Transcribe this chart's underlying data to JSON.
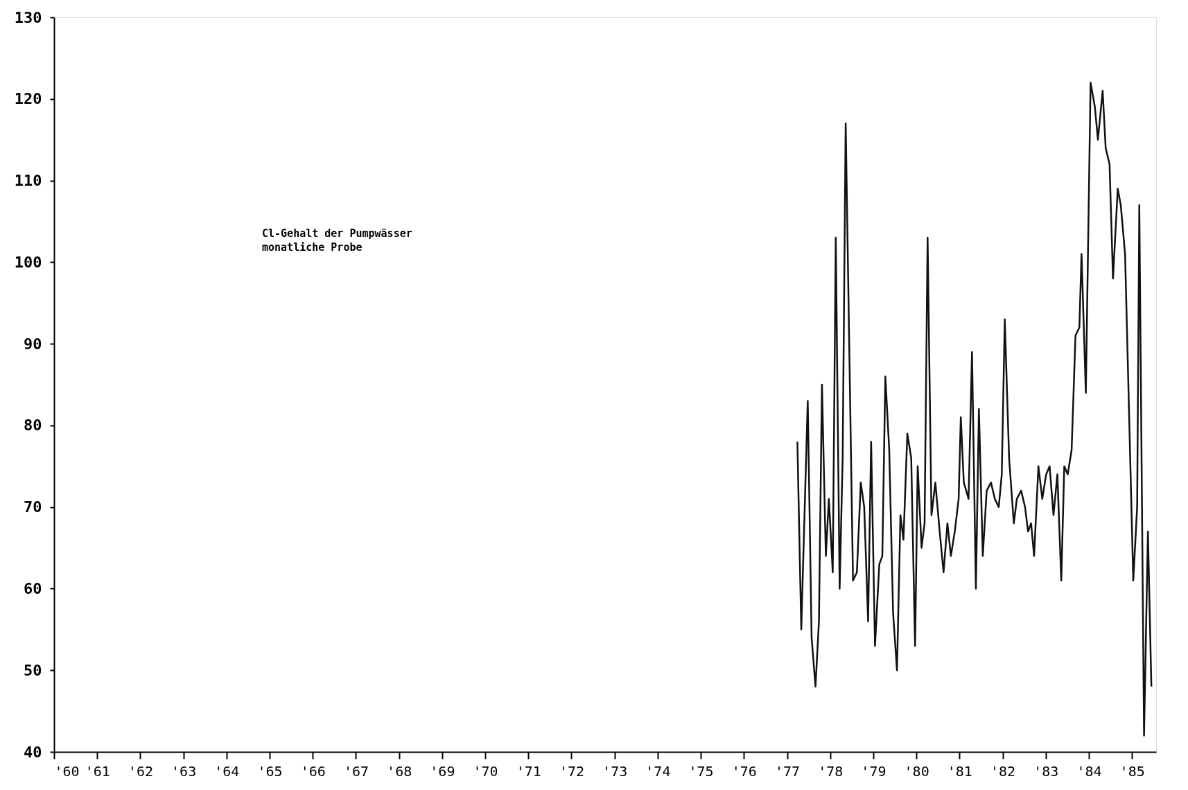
{
  "chart_data": {
    "type": "line",
    "annotations": [
      "Cl-Gehalt der Pumpwässer\nmonatliche Probe"
    ],
    "x": [
      1977.24,
      1977.33,
      1977.48,
      1977.57,
      1977.66,
      1977.74,
      1977.81,
      1977.9,
      1977.97,
      1978.06,
      1978.13,
      1978.22,
      1978.29,
      1978.36,
      1978.53,
      1978.62,
      1978.71,
      1978.79,
      1978.88,
      1978.95,
      1979.04,
      1979.14,
      1979.21,
      1979.28,
      1979.37,
      1979.46,
      1979.55,
      1979.63,
      1979.7,
      1979.79,
      1979.88,
      1979.97,
      1980.03,
      1980.12,
      1980.19,
      1980.26,
      1980.35,
      1980.44,
      1980.54,
      1980.63,
      1980.72,
      1980.8,
      1980.89,
      1980.98,
      1981.03,
      1981.1,
      1981.21,
      1981.29,
      1981.38,
      1981.45,
      1981.54,
      1981.63,
      1981.73,
      1981.82,
      1981.91,
      1981.98,
      1982.05,
      1982.15,
      1982.26,
      1982.33,
      1982.43,
      1982.52,
      1982.59,
      1982.66,
      1982.73,
      1982.83,
      1982.92,
      1983.01,
      1983.09,
      1983.18,
      1983.27,
      1983.36,
      1983.43,
      1983.51,
      1983.6,
      1983.69,
      1983.78,
      1983.83,
      1983.93,
      1984.04,
      1984.14,
      1984.21,
      1984.32,
      1984.39,
      1984.48,
      1984.56,
      1984.67,
      1984.74,
      1984.84,
      1985.03,
      1985.12,
      1985.17,
      1985.28,
      1985.37,
      1985.45
    ],
    "series": [
      {
        "color": "#111111",
        "values": [
          78,
          55,
          83,
          54,
          48,
          56,
          85,
          64,
          71,
          62,
          103,
          60,
          76,
          117,
          61,
          62,
          73,
          70,
          56,
          78,
          53,
          63,
          64,
          86,
          77,
          57,
          50,
          69,
          66,
          79,
          76,
          53,
          75,
          65,
          68,
          103,
          69,
          73,
          67,
          62,
          68,
          64,
          67,
          71,
          81,
          73,
          71,
          89,
          60,
          82,
          64,
          72,
          73,
          71,
          70,
          74,
          93,
          76,
          68,
          71,
          72,
          70,
          67,
          68,
          64,
          75,
          71,
          74,
          75,
          69,
          74,
          61,
          75,
          74,
          77,
          91,
          92,
          101,
          84,
          122,
          119,
          115,
          121,
          114,
          112,
          98,
          109,
          107,
          101,
          61,
          70,
          107,
          42,
          67,
          48
        ]
      }
    ],
    "xlim": [
      1960,
      1985.56
    ],
    "xticks": [
      {
        "value": 1960,
        "label": "'60"
      },
      {
        "value": 1961,
        "label": "'61"
      },
      {
        "value": 1962,
        "label": "'62"
      },
      {
        "value": 1963,
        "label": "'63"
      },
      {
        "value": 1964,
        "label": "'64"
      },
      {
        "value": 1965,
        "label": "'65"
      },
      {
        "value": 1966,
        "label": "'66"
      },
      {
        "value": 1967,
        "label": "'67"
      },
      {
        "value": 1968,
        "label": "'68"
      },
      {
        "value": 1969,
        "label": "'69"
      },
      {
        "value": 1970,
        "label": "'70"
      },
      {
        "value": 1971,
        "label": "'71"
      },
      {
        "value": 1972,
        "label": "'72"
      },
      {
        "value": 1973,
        "label": "'73"
      },
      {
        "value": 1974,
        "label": "'74"
      },
      {
        "value": 1975,
        "label": "'75"
      },
      {
        "value": 1976,
        "label": "'76"
      },
      {
        "value": 1977,
        "label": "'77"
      },
      {
        "value": 1978,
        "label": "'78"
      },
      {
        "value": 1979,
        "label": "'79"
      },
      {
        "value": 1980,
        "label": "'80"
      },
      {
        "value": 1981,
        "label": "'81"
      },
      {
        "value": 1982,
        "label": "'82"
      },
      {
        "value": 1983,
        "label": "'83"
      },
      {
        "value": 1984,
        "label": "'84"
      },
      {
        "value": 1985,
        "label": "'85"
      }
    ],
    "ylim": [
      40,
      130
    ],
    "yticks": [
      40,
      50,
      60,
      70,
      80,
      90,
      100,
      110,
      120,
      130
    ],
    "grid": false,
    "line_style": "solid"
  }
}
